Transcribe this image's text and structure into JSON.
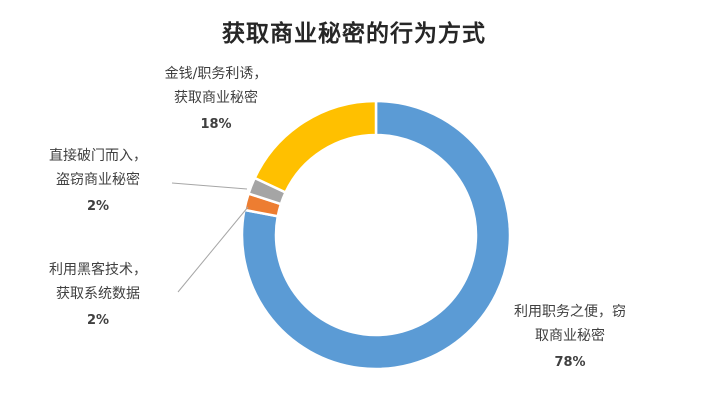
{
  "chart_data": {
    "type": "pie",
    "donut": true,
    "title": "获取商业秘密的行为方式",
    "slices": [
      {
        "label_lines": [
          "利用职务之便，窃",
          "取商业秘密"
        ],
        "value": 78,
        "pct_label": "78%",
        "color": "#5B9BD5"
      },
      {
        "label_lines": [
          "利用黑客技术，",
          "获取系统数据"
        ],
        "value": 2,
        "pct_label": "2%",
        "color": "#ED7D31"
      },
      {
        "label_lines": [
          "直接破门而入，",
          "盗窃商业秘密"
        ],
        "value": 2,
        "pct_label": "2%",
        "color": "#A5A5A5"
      },
      {
        "label_lines": [
          "金钱/职务利诱，",
          "获取商业秘密"
        ],
        "value": 18,
        "pct_label": "18%",
        "color": "#FFC000"
      }
    ]
  }
}
